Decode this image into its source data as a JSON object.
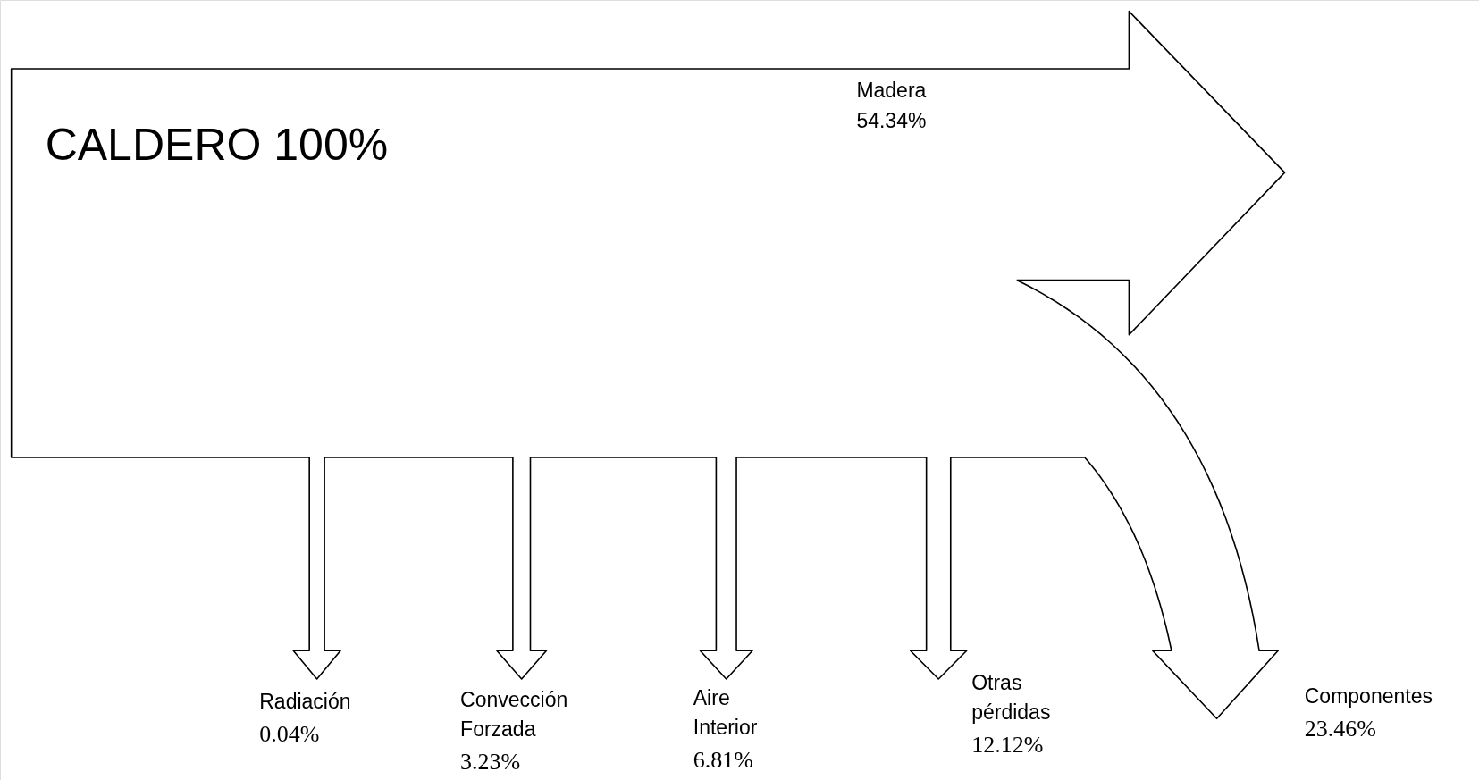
{
  "chart_data": {
    "type": "other",
    "categories": [
      "Madera",
      "Radiación",
      "Convección Forzada",
      "Aire Interior",
      "Otras pérdidas",
      "Componentes"
    ],
    "values": [
      54.34,
      0.04,
      3.23,
      6.81,
      12.12,
      23.46
    ],
    "value_labels": [
      "54.34%",
      "0.04%",
      "3.23%",
      "6.81%",
      "12.12%",
      "23.46%"
    ],
    "annotations": [
      "CALDERO 100%"
    ]
  }
}
